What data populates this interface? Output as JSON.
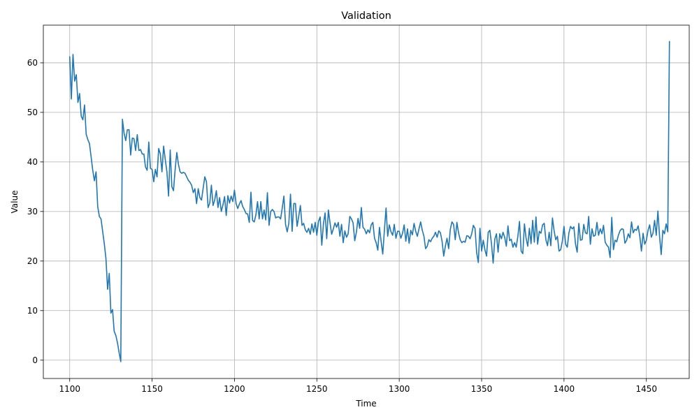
{
  "chart_data": {
    "type": "line",
    "title": "Validation",
    "xlabel": "Time",
    "ylabel": "Value",
    "xlim": [
      1084,
      1476
    ],
    "ylim": [
      -3.7,
      67.6
    ],
    "xticks": [
      1100,
      1150,
      1200,
      1250,
      1300,
      1350,
      1400,
      1450
    ],
    "yticks": [
      0,
      10,
      20,
      30,
      40,
      50,
      60
    ],
    "grid": true,
    "color": "#1f77b4",
    "series": [
      {
        "x_start": 1100,
        "x_step": 1,
        "values": [
          61.3,
          52.7,
          61.7,
          56.3,
          57.6,
          52.0,
          53.8,
          49.2,
          48.5,
          51.5,
          45.6,
          44.5,
          43.7,
          41.0,
          38.3,
          36.2,
          38.0,
          31.0,
          29.0,
          28.5,
          26.0,
          23.5,
          20.5,
          14.3,
          17.5,
          9.5,
          10.2,
          5.8,
          5.0,
          3.5,
          1.5,
          -0.3,
          48.6,
          45.8,
          44.3,
          46.5,
          46.5,
          41.4,
          44.8,
          44.7,
          42.3,
          45.5,
          42.3,
          42.5,
          41.6,
          41.6,
          39.0,
          38.3,
          44.0,
          38.7,
          38.5,
          36.0,
          38.5,
          37.0,
          42.7,
          41.6,
          38.0,
          43.2,
          40.5,
          38.0,
          33.1,
          42.4,
          35.0,
          34.2,
          38.5,
          41.9,
          39.5,
          38.0,
          37.7,
          37.9,
          37.7,
          37.0,
          36.3,
          35.9,
          35.3,
          33.8,
          34.6,
          31.6,
          34.6,
          32.8,
          32.3,
          34.7,
          37.0,
          36.0,
          30.8,
          31.7,
          35.3,
          31.2,
          32.3,
          34.2,
          30.8,
          32.8,
          30.0,
          31.3,
          33.0,
          29.2,
          33.2,
          31.7,
          33.1,
          32.0,
          34.3,
          31.6,
          30.6,
          31.5,
          32.2,
          31.0,
          30.4,
          29.6,
          29.5,
          27.8,
          33.9,
          28.2,
          27.9,
          29.3,
          32.0,
          28.5,
          32.0,
          28.5,
          30.3,
          28.3,
          33.8,
          27.2,
          30.0,
          30.4,
          30.0,
          28.7,
          28.9,
          28.9,
          28.5,
          30.7,
          33.1,
          27.4,
          25.9,
          27.6,
          33.5,
          26.0,
          31.6,
          31.6,
          27.0,
          29.0,
          31.2,
          27.2,
          27.6,
          26.3,
          25.8,
          26.6,
          25.4,
          27.5,
          25.8,
          27.8,
          25.2,
          28.0,
          28.9,
          23.2,
          27.5,
          29.7,
          24.5,
          30.3,
          27.7,
          25.4,
          26.5,
          27.7,
          26.8,
          27.8,
          25.0,
          27.4,
          23.7,
          26.1,
          24.8,
          25.5,
          29.0,
          28.5,
          27.7,
          24.1,
          25.8,
          28.6,
          26.6,
          30.8,
          26.8,
          26.4,
          25.5,
          26.3,
          25.7,
          27.3,
          27.8,
          24.6,
          23.7,
          22.2,
          26.8,
          24.0,
          21.4,
          26.2,
          30.7,
          25.0,
          27.3,
          25.9,
          25.2,
          27.4,
          24.6,
          26.0,
          26.0,
          24.6,
          25.6,
          27.3,
          24.0,
          26.5,
          23.6,
          26.2,
          25.3,
          27.6,
          26.0,
          25.0,
          26.5,
          27.9,
          26.2,
          25.0,
          22.5,
          23.0,
          24.3,
          23.9,
          24.6,
          25.0,
          25.8,
          24.8,
          26.1,
          25.7,
          24.0,
          21.0,
          23.0,
          24.6,
          22.5,
          26.4,
          27.9,
          27.4,
          24.3,
          27.8,
          25.7,
          24.3,
          23.7,
          24.0,
          23.8,
          25.1,
          25.0,
          24.5,
          25.5,
          27.2,
          26.6,
          21.7,
          19.7,
          26.6,
          22.0,
          24.2,
          22.3,
          21.0,
          25.8,
          26.2,
          23.5,
          19.6,
          24.4,
          25.5,
          21.8,
          25.5,
          24.5,
          25.8,
          24.8,
          23.0,
          27.1,
          24.1,
          24.4,
          22.8,
          23.7,
          22.8,
          25.0,
          28.0,
          22.0,
          21.5,
          27.5,
          24.6,
          23.0,
          26.6,
          23.5,
          28.2,
          23.8,
          28.9,
          23.4,
          26.0,
          25.6,
          27.3,
          27.6,
          24.3,
          23.1,
          25.8,
          23.1,
          28.7,
          26.1,
          24.3,
          25.0,
          22.0,
          22.3,
          24.0,
          27.0,
          23.4,
          22.8,
          25.7,
          27.0,
          26.5,
          26.9,
          23.4,
          21.8,
          27.6,
          24.2,
          24.3,
          27.4,
          25.7,
          25.5,
          29.0,
          23.4,
          26.5,
          25.0,
          25.2,
          27.8,
          25.2,
          26.5,
          25.5,
          27.2,
          23.8,
          23.2,
          22.8,
          20.7,
          28.8,
          22.3,
          24.2,
          23.9,
          25.2,
          26.1,
          26.5,
          26.4,
          23.6,
          24.2,
          25.5,
          24.7,
          27.9,
          25.7,
          26.4,
          26.2,
          27.1,
          25.0,
          22.0,
          25.6,
          23.4,
          24.2,
          26.2,
          27.3,
          24.8,
          25.6,
          28.2,
          25.2,
          30.1,
          25.0,
          21.3,
          26.2,
          25.5,
          27.5,
          25.9,
          64.4
        ]
      }
    ]
  }
}
